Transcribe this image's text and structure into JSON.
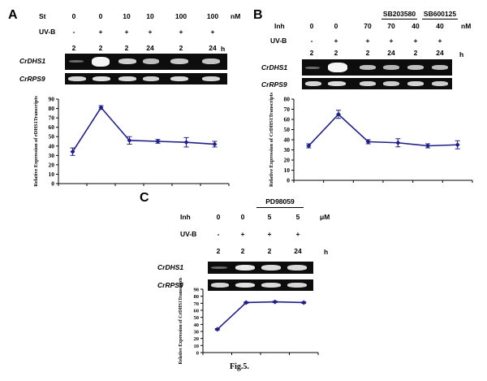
{
  "figure_caption": "Fig.5.",
  "panels": [
    {
      "letter": "A",
      "row1_label": "St",
      "row1_values": [
        "0",
        "0",
        "10",
        "10",
        "100",
        "100"
      ],
      "row1_unit": "nM",
      "row2_label": "UV-B",
      "row2_values": [
        "-",
        "+",
        "+",
        "+",
        "+",
        "+"
      ],
      "time_values": [
        "2",
        "2",
        "2",
        "24",
        "2",
        "24"
      ],
      "time_unit": "h",
      "genes": [
        "CrDHS1",
        "CrRPS9"
      ],
      "inhibitor_groups": []
    },
    {
      "letter": "B",
      "row1_label": "Inh",
      "row1_values": [
        "0",
        "0",
        "70",
        "70",
        "40",
        "40"
      ],
      "row1_unit": "nM",
      "row2_label": "UV-B",
      "row2_values": [
        "-",
        "+",
        "+",
        "+",
        "+",
        "+"
      ],
      "time_values": [
        "2",
        "2",
        "2",
        "24",
        "2",
        "24"
      ],
      "time_unit": "h",
      "genes": [
        "CrDHS1",
        "CrRPS9"
      ],
      "inhibitor_groups": [
        "SB203580",
        "SB600125"
      ]
    },
    {
      "letter": "C",
      "row1_label": "Inh",
      "row1_values": [
        "0",
        "0",
        "5",
        "5"
      ],
      "row1_unit": "μM",
      "row2_label": "UV-B",
      "row2_values": [
        "-",
        "+",
        "+",
        "+"
      ],
      "time_values": [
        "2",
        "2",
        "2",
        "24"
      ],
      "time_unit": "h",
      "genes": [
        "CrDHS1",
        "CrRPS9"
      ],
      "inhibitor_groups": [
        "PD98059"
      ]
    }
  ],
  "chart_data": [
    {
      "type": "line",
      "panel": "A",
      "ylabel": "Relative Expression of rDHS1Transcripts",
      "ylim": [
        0,
        90
      ],
      "yticks": [
        0,
        10,
        20,
        30,
        40,
        50,
        60,
        70,
        80,
        90
      ],
      "x": [
        1,
        2,
        3,
        4,
        5,
        6
      ],
      "values": [
        34,
        81,
        46,
        45,
        44,
        42
      ],
      "error": [
        4,
        2,
        4,
        2,
        5,
        3
      ],
      "color": "#1f1f8a"
    },
    {
      "type": "line",
      "panel": "B",
      "ylabel": "Relative Expression of CrDHS1Transcripts",
      "ylim": [
        0,
        80
      ],
      "yticks": [
        0,
        10,
        20,
        30,
        40,
        50,
        60,
        70,
        80
      ],
      "x": [
        1,
        2,
        3,
        4,
        5,
        6
      ],
      "values": [
        34,
        65,
        38,
        37,
        34,
        35
      ],
      "error": [
        2,
        4,
        2,
        4,
        2,
        4
      ],
      "color": "#1f1f8a"
    },
    {
      "type": "line",
      "panel": "C",
      "ylabel": "Relative Expression of CrDHS1Transcripts",
      "ylim": [
        0,
        90
      ],
      "yticks": [
        0,
        10,
        20,
        30,
        40,
        50,
        60,
        70,
        80,
        90
      ],
      "x": [
        1,
        2,
        3,
        4
      ],
      "values": [
        33,
        71,
        72,
        71
      ],
      "error": [
        1,
        1,
        1,
        1
      ],
      "color": "#1f1f8a"
    }
  ]
}
